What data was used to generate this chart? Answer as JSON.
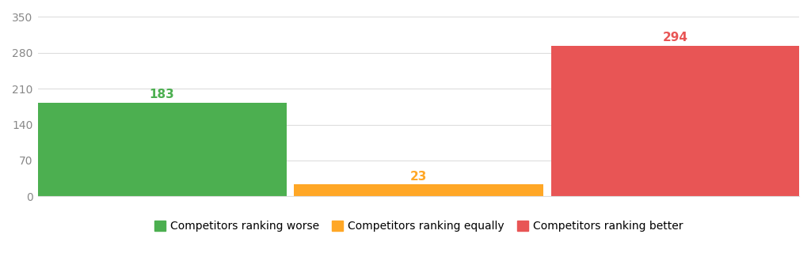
{
  "categories": [
    "Competitors ranking worse",
    "Competitors ranking equally",
    "Competitors ranking better"
  ],
  "values": [
    183,
    23,
    294
  ],
  "bar_colors": [
    "#4CAF50",
    "#FFA726",
    "#E85555"
  ],
  "label_colors": [
    "#4CAF50",
    "#FFA726",
    "#E85555"
  ],
  "yticks": [
    0,
    70,
    140,
    210,
    280,
    350
  ],
  "ylim": [
    0,
    360
  ],
  "background_color": "#ffffff",
  "grid_color": "#dddddd",
  "tick_color": "#888888",
  "legend_labels": [
    "Competitors ranking worse",
    "Competitors ranking equally",
    "Competitors ranking better"
  ],
  "legend_colors": [
    "#4CAF50",
    "#FFA726",
    "#E85555"
  ],
  "label_fontsize": 11,
  "tick_fontsize": 10,
  "legend_fontsize": 10
}
